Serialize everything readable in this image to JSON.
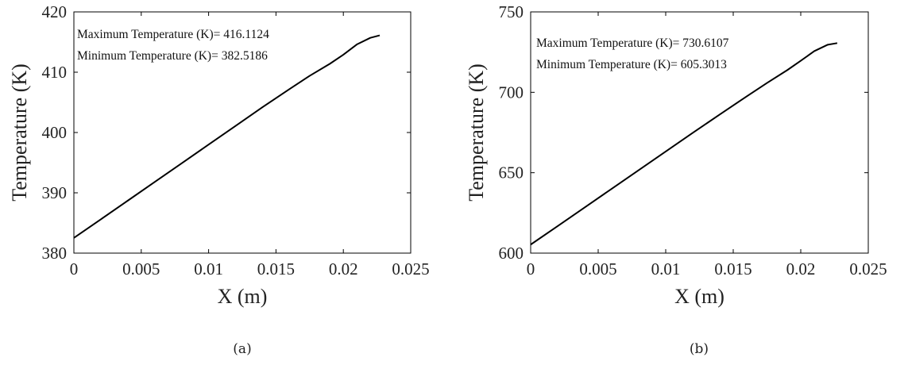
{
  "chart_data": [
    {
      "type": "line",
      "xlabel": "X (m)",
      "ylabel": "Temperature (K)",
      "xlim": [
        0,
        0.025
      ],
      "ylim": [
        380,
        420
      ],
      "xticks": [
        "0",
        "0.005",
        "0.01",
        "0.015",
        "0.02",
        "0.025"
      ],
      "yticks": [
        "380",
        "390",
        "400",
        "410",
        "420"
      ],
      "annotations": [
        "Maximum Temperature (K)= 416.1124",
        "Minimum Temperature (K)= 382.5186"
      ],
      "caption": "(a)",
      "series": [
        {
          "x": [
            0,
            0.002,
            0.004,
            0.006,
            0.008,
            0.01,
            0.012,
            0.014,
            0.016,
            0.0175,
            0.019,
            0.02,
            0.021,
            0.022,
            0.0227
          ],
          "y": [
            382.52,
            385.6,
            388.7,
            391.8,
            394.9,
            398.0,
            401.1,
            404.2,
            407.2,
            409.4,
            411.4,
            412.9,
            414.6,
            415.7,
            416.11
          ]
        }
      ]
    },
    {
      "type": "line",
      "xlabel": "X (m)",
      "ylabel": "Temperature (K)",
      "xlim": [
        0,
        0.025
      ],
      "ylim": [
        600,
        750
      ],
      "xticks": [
        "0",
        "0.005",
        "0.01",
        "0.015",
        "0.02",
        "0.025"
      ],
      "yticks": [
        "600",
        "650",
        "700",
        "750"
      ],
      "annotations": [
        "Maximum Temperature (K)= 730.6107",
        "Minimum Temperature (K)= 605.3013"
      ],
      "caption": "(b)",
      "series": [
        {
          "x": [
            0,
            0.002,
            0.004,
            0.006,
            0.008,
            0.01,
            0.012,
            0.014,
            0.016,
            0.0175,
            0.019,
            0.02,
            0.021,
            0.022,
            0.0227
          ],
          "y": [
            605.3,
            616.8,
            628.4,
            640.0,
            651.6,
            663.2,
            674.8,
            686.2,
            697.5,
            705.8,
            713.8,
            719.6,
            725.6,
            729.6,
            730.61
          ]
        }
      ]
    }
  ]
}
